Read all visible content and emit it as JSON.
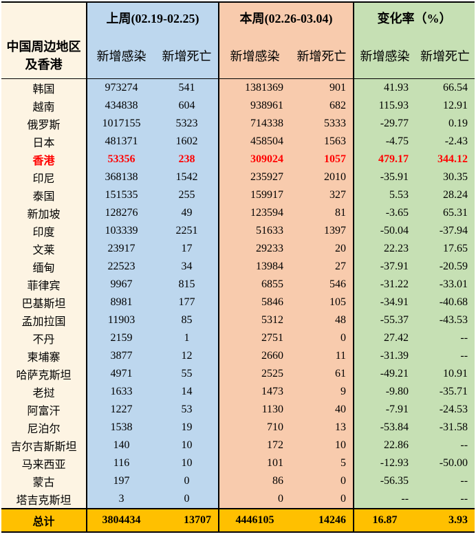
{
  "header": {
    "region_label": "中国周边地区及香港",
    "last_week": "上周(02.19-02.25)",
    "this_week": "本周(02.26-03.04)",
    "change_rate": "变化率（%）",
    "new_cases": "新增感染",
    "new_deaths": "新增死亡"
  },
  "rows": [
    {
      "name": "韩国",
      "lw_cases": "973274",
      "lw_deaths": "541",
      "tw_cases": "1381369",
      "tw_deaths": "901",
      "ch_cases": "41.93",
      "ch_deaths": "66.54"
    },
    {
      "name": "越南",
      "lw_cases": "434838",
      "lw_deaths": "604",
      "tw_cases": "938961",
      "tw_deaths": "682",
      "ch_cases": "115.93",
      "ch_deaths": "12.91"
    },
    {
      "name": "俄罗斯",
      "lw_cases": "1017155",
      "lw_deaths": "5323",
      "tw_cases": "714338",
      "tw_deaths": "5333",
      "ch_cases": "-29.77",
      "ch_deaths": "0.19"
    },
    {
      "name": "日本",
      "lw_cases": "481371",
      "lw_deaths": "1602",
      "tw_cases": "458504",
      "tw_deaths": "1563",
      "ch_cases": "-4.75",
      "ch_deaths": "-2.43"
    },
    {
      "name": "香港",
      "lw_cases": "53356",
      "lw_deaths": "238",
      "tw_cases": "309024",
      "tw_deaths": "1057",
      "ch_cases": "479.17",
      "ch_deaths": "344.12",
      "highlight": true
    },
    {
      "name": "印尼",
      "lw_cases": "368138",
      "lw_deaths": "1542",
      "tw_cases": "235927",
      "tw_deaths": "2010",
      "ch_cases": "-35.91",
      "ch_deaths": "30.35"
    },
    {
      "name": "泰国",
      "lw_cases": "151535",
      "lw_deaths": "255",
      "tw_cases": "159917",
      "tw_deaths": "327",
      "ch_cases": "5.53",
      "ch_deaths": "28.24"
    },
    {
      "name": "新加坡",
      "lw_cases": "128276",
      "lw_deaths": "49",
      "tw_cases": "123594",
      "tw_deaths": "81",
      "ch_cases": "-3.65",
      "ch_deaths": "65.31"
    },
    {
      "name": "印度",
      "lw_cases": "103339",
      "lw_deaths": "2251",
      "tw_cases": "51633",
      "tw_deaths": "1397",
      "ch_cases": "-50.04",
      "ch_deaths": "-37.94"
    },
    {
      "name": "文莱",
      "lw_cases": "23917",
      "lw_deaths": "17",
      "tw_cases": "29233",
      "tw_deaths": "20",
      "ch_cases": "22.23",
      "ch_deaths": "17.65"
    },
    {
      "name": "缅甸",
      "lw_cases": "22523",
      "lw_deaths": "34",
      "tw_cases": "13984",
      "tw_deaths": "27",
      "ch_cases": "-37.91",
      "ch_deaths": "-20.59"
    },
    {
      "name": "菲律宾",
      "lw_cases": "9967",
      "lw_deaths": "815",
      "tw_cases": "6855",
      "tw_deaths": "546",
      "ch_cases": "-31.22",
      "ch_deaths": "-33.01"
    },
    {
      "name": "巴基斯坦",
      "lw_cases": "8981",
      "lw_deaths": "177",
      "tw_cases": "5846",
      "tw_deaths": "105",
      "ch_cases": "-34.91",
      "ch_deaths": "-40.68"
    },
    {
      "name": "孟加拉国",
      "lw_cases": "11903",
      "lw_deaths": "85",
      "tw_cases": "5312",
      "tw_deaths": "48",
      "ch_cases": "-55.37",
      "ch_deaths": "-43.53"
    },
    {
      "name": "不丹",
      "lw_cases": "2159",
      "lw_deaths": "1",
      "tw_cases": "2751",
      "tw_deaths": "0",
      "ch_cases": "27.42",
      "ch_deaths": "--"
    },
    {
      "name": "柬埔寨",
      "lw_cases": "3877",
      "lw_deaths": "12",
      "tw_cases": "2660",
      "tw_deaths": "11",
      "ch_cases": "-31.39",
      "ch_deaths": "--"
    },
    {
      "name": "哈萨克斯坦",
      "lw_cases": "4971",
      "lw_deaths": "55",
      "tw_cases": "2525",
      "tw_deaths": "61",
      "ch_cases": "-49.21",
      "ch_deaths": "10.91"
    },
    {
      "name": "老挝",
      "lw_cases": "1633",
      "lw_deaths": "14",
      "tw_cases": "1473",
      "tw_deaths": "9",
      "ch_cases": "-9.80",
      "ch_deaths": "-35.71"
    },
    {
      "name": "阿富汗",
      "lw_cases": "1227",
      "lw_deaths": "53",
      "tw_cases": "1130",
      "tw_deaths": "40",
      "ch_cases": "-7.91",
      "ch_deaths": "-24.53"
    },
    {
      "name": "尼泊尔",
      "lw_cases": "1538",
      "lw_deaths": "19",
      "tw_cases": "710",
      "tw_deaths": "13",
      "ch_cases": "-53.84",
      "ch_deaths": "-31.58"
    },
    {
      "name": "吉尔吉斯斯坦",
      "lw_cases": "140",
      "lw_deaths": "10",
      "tw_cases": "172",
      "tw_deaths": "10",
      "ch_cases": "22.86",
      "ch_deaths": "--"
    },
    {
      "name": "马来西亚",
      "lw_cases": "116",
      "lw_deaths": "10",
      "tw_cases": "101",
      "tw_deaths": "5",
      "ch_cases": "-12.93",
      "ch_deaths": "-50.00"
    },
    {
      "name": "蒙古",
      "lw_cases": "197",
      "lw_deaths": "0",
      "tw_cases": "86",
      "tw_deaths": "0",
      "ch_cases": "-56.35",
      "ch_deaths": "--"
    },
    {
      "name": "塔吉克斯坦",
      "lw_cases": "3",
      "lw_deaths": "0",
      "tw_cases": "0",
      "tw_deaths": "0",
      "ch_cases": "--",
      "ch_deaths": "--"
    }
  ],
  "total": {
    "name": "总计",
    "lw_cases": "3804434",
    "lw_deaths": "13707",
    "tw_cases": "4446105",
    "tw_deaths": "14246",
    "ch_cases": "16.87",
    "ch_deaths": "3.93"
  },
  "colors": {
    "region_bg": "#fdf4e3",
    "last_week_bg": "#bdd7ee",
    "this_week_bg": "#f8cbad",
    "change_bg": "#c6e0b4",
    "total_bg": "#ffc000",
    "highlight_text": "#ff0000"
  }
}
